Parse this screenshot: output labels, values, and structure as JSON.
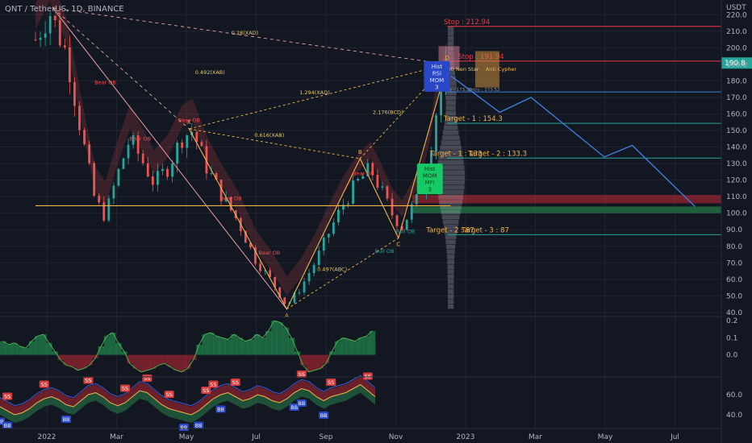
{
  "header": {
    "symbol": "QNT / TetherUS, 1D, BINANCE",
    "currency": "USDT"
  },
  "colors": {
    "bg": "#131722",
    "grid": "#1f2430",
    "text": "#b2b5be",
    "candle_up": "#26a69a",
    "candle_down": "#ef5350",
    "target": "#f0b44b",
    "stop": "#f23645",
    "pattern": "#f0b44b",
    "projection": "#3d7dd8",
    "price_badge": "#26a69a"
  },
  "chart_data": [
    {
      "type": "candlestick",
      "title": "",
      "y_ticks": [
        40,
        50,
        60,
        70,
        80,
        90,
        100,
        110,
        120,
        130,
        140,
        150,
        160,
        170,
        180,
        190,
        200,
        210,
        220
      ],
      "ylim": [
        38,
        225
      ],
      "x_ticks": [
        "2022",
        "Mar",
        "May",
        "Jul",
        "Sep",
        "Nov",
        "2023",
        "Mar",
        "May",
        "Jul"
      ],
      "current_price": "190.8",
      "price_path": [
        {
          "t": 0.0,
          "p": 205
        },
        {
          "t": 0.4,
          "p": 222
        },
        {
          "t": 0.9,
          "p": 196
        },
        {
          "t": 1.3,
          "p": 150
        },
        {
          "t": 1.7,
          "p": 108
        },
        {
          "t": 2.0,
          "p": 98
        },
        {
          "t": 2.3,
          "p": 120
        },
        {
          "t": 2.7,
          "p": 145
        },
        {
          "t": 3.1,
          "p": 130
        },
        {
          "t": 3.4,
          "p": 118
        },
        {
          "t": 3.8,
          "p": 128
        },
        {
          "t": 4.2,
          "p": 146
        },
        {
          "t": 4.5,
          "p": 150
        },
        {
          "t": 4.9,
          "p": 128
        },
        {
          "t": 5.3,
          "p": 112
        },
        {
          "t": 5.8,
          "p": 95
        },
        {
          "t": 6.3,
          "p": 72
        },
        {
          "t": 6.8,
          "p": 58
        },
        {
          "t": 7.2,
          "p": 44
        },
        {
          "t": 7.6,
          "p": 55
        },
        {
          "t": 8.0,
          "p": 70
        },
        {
          "t": 8.4,
          "p": 88
        },
        {
          "t": 8.8,
          "p": 105
        },
        {
          "t": 9.2,
          "p": 118
        },
        {
          "t": 9.6,
          "p": 127
        },
        {
          "t": 9.9,
          "p": 114
        },
        {
          "t": 10.2,
          "p": 100
        },
        {
          "t": 10.5,
          "p": 92
        },
        {
          "t": 10.8,
          "p": 104
        },
        {
          "t": 11.0,
          "p": 110
        },
        {
          "t": 11.3,
          "p": 138
        },
        {
          "t": 11.5,
          "p": 164
        },
        {
          "t": 11.7,
          "p": 182
        },
        {
          "t": 11.8,
          "p": 190
        }
      ],
      "price_levels": [
        {
          "label": "Stop : 212.94",
          "value": 212.94,
          "kind": "stop"
        },
        {
          "label": "Stop : 191.94",
          "value": 191.94,
          "kind": "stop"
        },
        {
          "label": "Target - 1 : 154.3",
          "value": 154.3,
          "kind": "target"
        },
        {
          "label": "Target - 1 : 133",
          "value": 133.3,
          "kind": "target"
        },
        {
          "label": "Target - 2 : 133.3",
          "value": 133.3,
          "kind": "target"
        },
        {
          "label": "Target - 2 : 87",
          "value": 87,
          "kind": "target"
        },
        {
          "label": "Target - 3 : 87",
          "value": 87,
          "kind": "target"
        }
      ],
      "zones": [
        {
          "label": "",
          "from": 106,
          "to": 111,
          "kind": "bear"
        },
        {
          "label": "",
          "from": 100,
          "to": 104,
          "kind": "bull"
        }
      ],
      "orange_level": 104.5,
      "entry_labels": [
        "Entry : 173.13",
        "Entry : 173.52"
      ],
      "pattern_points": [
        {
          "label": "X",
          "t": 4.4,
          "p": 151
        },
        {
          "label": "A",
          "t": 7.2,
          "p": 42
        },
        {
          "label": "B",
          "t": 9.3,
          "p": 133
        },
        {
          "label": "C",
          "t": 10.4,
          "p": 85
        },
        {
          "label": "D",
          "t": 11.8,
          "p": 190
        }
      ],
      "ratios": [
        {
          "label": "0.28(XAD)",
          "t": 6.0,
          "p": 208
        },
        {
          "label": "0.492(XAB)",
          "t": 5.0,
          "p": 184
        },
        {
          "label": "1.294(XAD)",
          "t": 8.0,
          "p": 172
        },
        {
          "label": "0.616(XAB)",
          "t": 6.7,
          "p": 146
        },
        {
          "label": "2.176(BCD)",
          "t": 10.1,
          "p": 160
        },
        {
          "label": "0.497(ABC)",
          "t": 8.5,
          "p": 65
        }
      ],
      "ob_labels": [
        {
          "label": "Bear OB",
          "t": 2.0,
          "p": 178
        },
        {
          "label": "Bear OB",
          "t": 3.0,
          "p": 144
        },
        {
          "label": "Bear OB",
          "t": 4.4,
          "p": 155
        },
        {
          "label": "Bear OB",
          "t": 5.6,
          "p": 108
        },
        {
          "label": "Bear OB",
          "t": 6.7,
          "p": 75
        },
        {
          "label": "Bear OB",
          "t": 9.4,
          "p": 123
        },
        {
          "label": "Bull OB",
          "t": 10.6,
          "p": 88
        },
        {
          "label": "Bull OB",
          "t": 10.0,
          "p": 76
        }
      ],
      "signal_boxes": [
        {
          "lines": [
            "Hist",
            "RSI",
            "MOM",
            "3"
          ],
          "t": 11.5,
          "p": 190
        },
        {
          "lines": [
            "Hist",
            "MOM",
            "MFI",
            "3"
          ],
          "t": 11.3,
          "p": 128
        }
      ],
      "pattern_names": [
        "Anti Nen Star",
        "Anti Cypher"
      ],
      "projection_path": [
        {
          "t": 11.9,
          "p": 183
        },
        {
          "t": 13.3,
          "p": 161
        },
        {
          "t": 14.2,
          "p": 170
        },
        {
          "t": 16.3,
          "p": 134
        },
        {
          "t": 17.1,
          "p": 141
        },
        {
          "t": 18.9,
          "p": 104
        }
      ]
    },
    {
      "type": "area",
      "title": "",
      "y_ticks": [
        "0.2",
        "0.1",
        "0.0"
      ],
      "ylim": [
        -0.12,
        0.22
      ],
      "series": [
        {
          "values": [
            0.08,
            0.06,
            0.07,
            0.05,
            0.04,
            0.08,
            0.11,
            0.12,
            0.07,
            0.02,
            -0.03,
            -0.06,
            -0.07,
            -0.09,
            -0.08,
            -0.06,
            -0.02,
            0.05,
            0.11,
            0.13,
            0.07,
            0.02,
            -0.05,
            -0.08,
            -0.1,
            -0.09,
            -0.08,
            -0.06,
            -0.05,
            -0.07,
            -0.09,
            -0.1,
            -0.08,
            -0.03,
            0.06,
            0.12,
            0.13,
            0.11,
            0.1,
            0.09,
            0.12,
            0.1,
            0.08,
            0.09,
            0.12,
            0.1,
            0.14,
            0.2,
            0.19,
            0.16,
            0.1,
            0.02,
            -0.06,
            -0.1,
            -0.09,
            -0.08,
            -0.05,
            0.02,
            0.08,
            0.1,
            0.09,
            0.08,
            0.1,
            0.11,
            0.14
          ]
        }
      ]
    },
    {
      "type": "line",
      "title": "",
      "y_ticks": [
        "60.0",
        "40.0"
      ],
      "ylim": [
        28,
        76
      ],
      "series": [
        {
          "values": [
            48,
            44,
            40,
            42,
            46,
            52,
            56,
            58,
            55,
            50,
            48,
            54,
            60,
            62,
            58,
            52,
            49,
            52,
            58,
            64,
            62,
            56,
            50,
            46,
            44,
            42,
            40,
            44,
            50,
            56,
            60,
            62,
            58,
            54,
            56,
            60,
            58,
            54,
            52,
            56,
            62,
            66,
            64,
            58,
            54,
            58,
            60,
            62,
            66,
            70,
            64,
            58
          ]
        }
      ],
      "markers": [
        {
          "label": "SS",
          "i": 1
        },
        {
          "label": "SS",
          "i": 6
        },
        {
          "label": "SS",
          "i": 12
        },
        {
          "label": "SS",
          "i": 17
        },
        {
          "label": "SS",
          "i": 20
        },
        {
          "label": "SS",
          "i": 23
        },
        {
          "label": "SS",
          "i": 28
        },
        {
          "label": "SS",
          "i": 29
        },
        {
          "label": "SS",
          "i": 32
        },
        {
          "label": "SS",
          "i": 41
        },
        {
          "label": "SS",
          "i": 45
        },
        {
          "label": "SS",
          "i": 50
        },
        {
          "label": "BB",
          "i": 0
        },
        {
          "label": "BB",
          "i": 1
        },
        {
          "label": "BB",
          "i": 9
        },
        {
          "label": "BB",
          "i": 25
        },
        {
          "label": "BB",
          "i": 27
        },
        {
          "label": "BB",
          "i": 30
        },
        {
          "label": "BB",
          "i": 40
        },
        {
          "label": "BB",
          "i": 41
        },
        {
          "label": "BB",
          "i": 44
        }
      ]
    }
  ]
}
